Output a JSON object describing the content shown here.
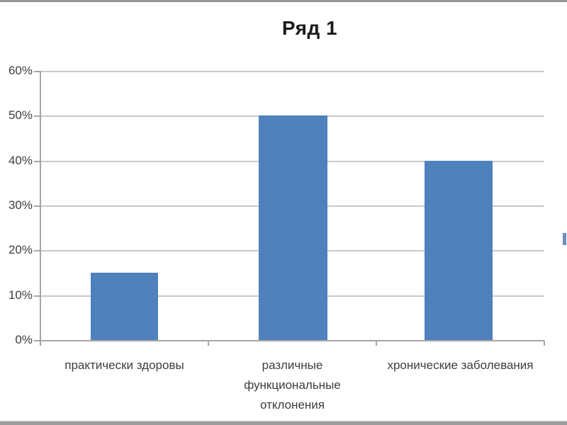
{
  "chart_data": {
    "type": "bar",
    "title": "Ряд 1",
    "categories": [
      "практически здоровы",
      "различные функциональные отклонения",
      "хронические заболевания"
    ],
    "category_labels_wrapped": [
      "практически здоровы",
      "различные\nфункциональные\nотклонения",
      "хронические заболевания"
    ],
    "values": [
      15,
      50,
      40
    ],
    "value_unit": "%",
    "xlabel": "",
    "ylabel": "",
    "ylim": [
      0,
      60
    ],
    "yticks_top_to_bottom": [
      "60%",
      "50%",
      "40%",
      "30%",
      "20%",
      "10%",
      "0%"
    ],
    "grid": "horizontal",
    "legend": "none",
    "bar_color": "#4f81bd",
    "gridline_color": "#c9c9c9",
    "axis_color": "#a6a6a6",
    "title_color": "#1c1c1c",
    "label_color": "#3d3d3d"
  }
}
